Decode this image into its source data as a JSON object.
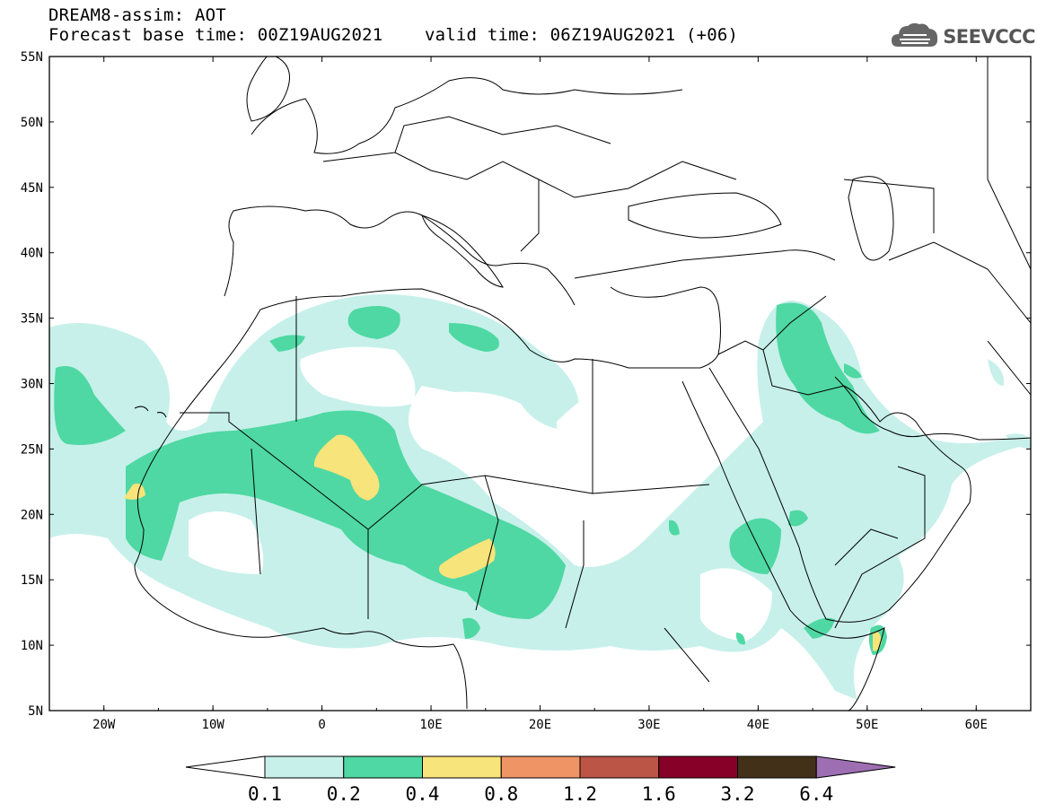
{
  "title": {
    "line1": "DREAM8-assim: AOT",
    "line2": "Forecast base time: 00Z19AUG2021    valid time: 06Z19AUG2021 (+06)"
  },
  "logo": {
    "text": "SEEVCCC",
    "icon": "cloud-icon",
    "color": "#555555"
  },
  "axes": {
    "lat_labels": [
      "55N",
      "50N",
      "45N",
      "40N",
      "35N",
      "30N",
      "25N",
      "20N",
      "15N",
      "10N",
      "5N"
    ],
    "lon_labels": [
      "20W",
      "10W",
      "0",
      "10E",
      "20E",
      "30E",
      "40E",
      "50E",
      "60E"
    ]
  },
  "legend": {
    "labels": [
      "0.1",
      "0.2",
      "0.4",
      "0.8",
      "1.2",
      "1.6",
      "3.2",
      "6.4"
    ],
    "colors": [
      "#c7f0ea",
      "#4fd8a3",
      "#f7e47a",
      "#ef9464",
      "#bb5646",
      "#870028",
      "#433018",
      "#9e6eb3"
    ],
    "under_color": "#ffffff"
  },
  "fields": {
    "low_color": "#c7f0ea",
    "mid_color": "#4fd8a3",
    "high_color": "#f7e47a"
  }
}
